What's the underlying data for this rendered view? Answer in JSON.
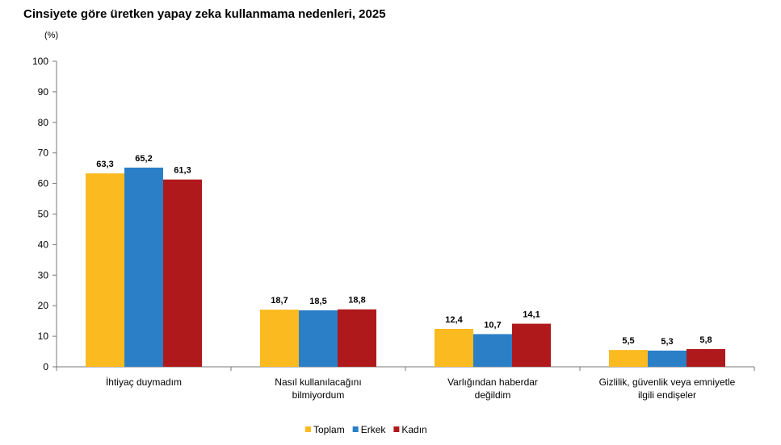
{
  "chart_data": {
    "type": "bar",
    "title": "Cinsiyete göre üretken yapay zeka kullanmama nedenleri, 2025",
    "ylabel": "(%)",
    "ylim": [
      0,
      100
    ],
    "yticks": [
      0,
      10,
      20,
      30,
      40,
      50,
      60,
      70,
      80,
      90,
      100
    ],
    "grid": false,
    "legend": "bottom",
    "categories": [
      [
        "İhtiyaç duymadım"
      ],
      [
        "Nasıl kullanılacağını",
        "bilmiyordum"
      ],
      [
        "Varlığından haberdar",
        "değildim"
      ],
      [
        "Gizlilik, güvenlik veya emniyetle",
        "ilgili endişeler"
      ]
    ],
    "series": [
      {
        "name": "Toplam",
        "color": "#FBBA1F",
        "values": [
          63.3,
          18.7,
          12.4,
          5.5
        ],
        "labels": [
          "63,3",
          "18,7",
          "12,4",
          "5,5"
        ]
      },
      {
        "name": "Erkek",
        "color": "#2A7FC7",
        "values": [
          65.2,
          18.5,
          10.7,
          5.3
        ],
        "labels": [
          "65,2",
          "18,5",
          "10,7",
          "5,3"
        ]
      },
      {
        "name": "Kadın",
        "color": "#B0191C",
        "values": [
          61.3,
          18.8,
          14.1,
          5.8
        ],
        "labels": [
          "61,3",
          "18,8",
          "14,1",
          "5,8"
        ]
      }
    ]
  }
}
